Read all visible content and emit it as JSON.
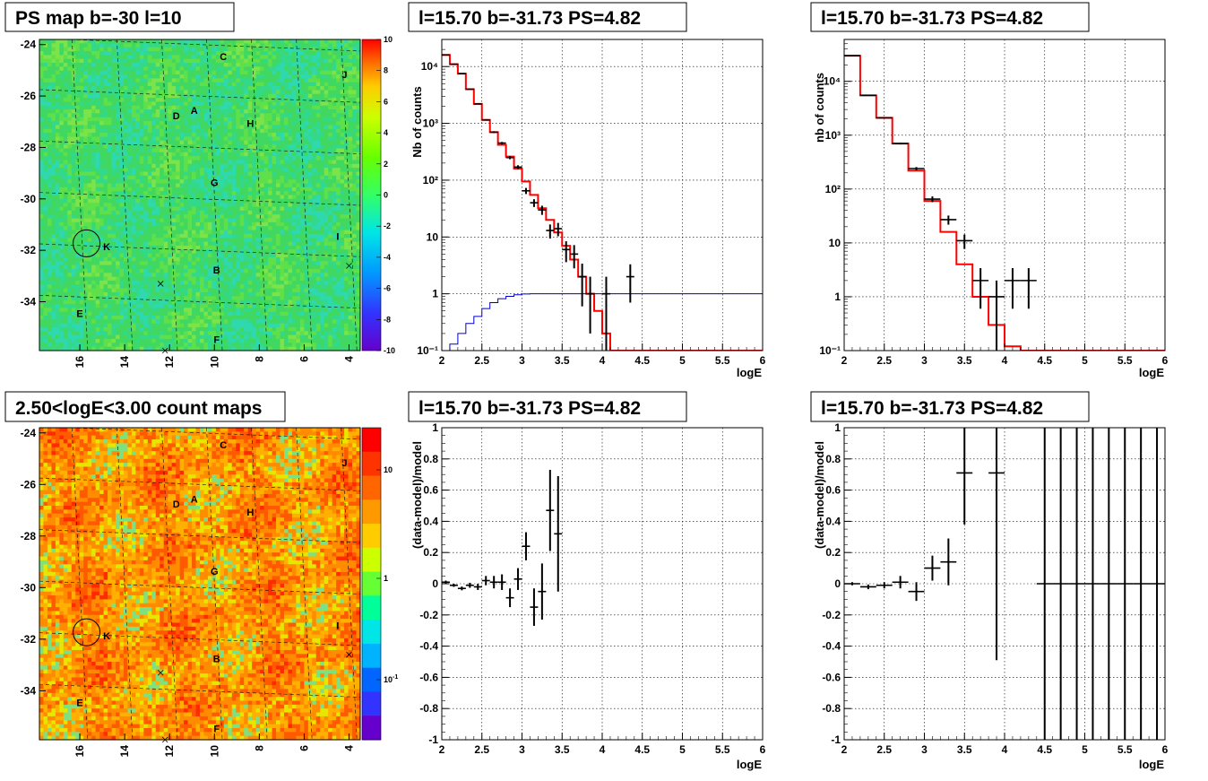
{
  "panels": {
    "map_top": {
      "title": "PS map b=-30 l=10",
      "y_ticks": [
        "-24",
        "-26",
        "-28",
        "-30",
        "-32",
        "-34"
      ],
      "x_ticks": [
        "16",
        "14",
        "12",
        "10",
        "8",
        "6",
        "4"
      ],
      "palette_ticks": [
        "10",
        "8",
        "6",
        "4",
        "2",
        "0",
        "-2",
        "-4",
        "-6",
        "-8",
        "-10"
      ],
      "base_color": "#40d860"
    },
    "map_bottom": {
      "title": "2.50<logE<3.00 count maps",
      "y_ticks": [
        "-24",
        "-26",
        "-28",
        "-30",
        "-32",
        "-34"
      ],
      "x_ticks": [
        "16",
        "14",
        "12",
        "10",
        "8",
        "6",
        "4"
      ],
      "palette_ticks": [
        "10",
        "1",
        "10"
      ],
      "palette_exp": "-1",
      "base_color": "#ff8c00"
    },
    "spec_left": {
      "title": "l=15.70 b=-31.73 PS=4.82",
      "ylabel": "Nb of counts",
      "xlabel": "logE"
    },
    "spec_right": {
      "title": "l=15.70 b=-31.73 PS=4.82",
      "ylabel": "nb of counts",
      "xlabel": "logE"
    },
    "res_left": {
      "title": "l=15.70 b=-31.73 PS=4.82",
      "ylabel": "(data-model)/model",
      "xlabel": "logE"
    },
    "res_right": {
      "title": "l=15.70 b=-31.73 PS=4.82",
      "ylabel": "(data-model)/model",
      "xlabel": "logE"
    }
  },
  "sources": [
    {
      "label": "C",
      "l": 9.6,
      "b": -24.6
    },
    {
      "label": "J",
      "l": 4.2,
      "b": -25.3
    },
    {
      "label": "D",
      "l": 11.7,
      "b": -26.9
    },
    {
      "label": "A",
      "l": 10.9,
      "b": -26.7
    },
    {
      "label": "H",
      "l": 8.4,
      "b": -27.2
    },
    {
      "label": "G",
      "l": 10.0,
      "b": -29.5
    },
    {
      "label": "I",
      "l": 4.5,
      "b": -31.6
    },
    {
      "label": "K",
      "l": 14.8,
      "b": -32.0
    },
    {
      "label": "B",
      "l": 9.9,
      "b": -32.9
    },
    {
      "label": "E",
      "l": 16.0,
      "b": -34.6
    },
    {
      "label": "F",
      "l": 9.9,
      "b": -35.6
    }
  ],
  "crosses": [
    {
      "l": 12.4,
      "b": -33.3
    },
    {
      "l": 4.0,
      "b": -32.6
    },
    {
      "l": 12.2,
      "b": -35.9
    }
  ],
  "ps_circle": {
    "l": 15.7,
    "b": -31.73
  },
  "colors": {
    "data": "#000000",
    "model": "#ff0000",
    "efficiency": "#0000cc"
  },
  "chart_data": [
    {
      "type": "line",
      "title": "l=15.70 b=-31.73 PS=4.82",
      "xlabel": "logE",
      "ylabel": "Nb of counts",
      "xlim": [
        2,
        6
      ],
      "ylim": [
        0.1,
        30000
      ],
      "y_scale": "log",
      "x_ticks": [
        2,
        2.5,
        3,
        3.5,
        4,
        4.5,
        5,
        5.5,
        6
      ],
      "y_ticks": [
        0.1,
        1,
        10,
        100,
        1000,
        10000
      ],
      "y_tick_labels": [
        "10⁻¹",
        "1",
        "10",
        "10²",
        "10³",
        "10⁴"
      ],
      "grid": true,
      "series": [
        {
          "kind": "histogram",
          "color": "#ff0000",
          "bin_edges": [
            2.0,
            2.1,
            2.2,
            2.3,
            2.4,
            2.5,
            2.6,
            2.7,
            2.8,
            2.9,
            3.0,
            3.1,
            3.2,
            3.3,
            3.4,
            3.5,
            3.6,
            3.7,
            3.8,
            3.9,
            4.0,
            4.1,
            4.2,
            6.0
          ],
          "values": [
            16000,
            11000,
            7500,
            4000,
            2200,
            1150,
            700,
            420,
            260,
            160,
            95,
            55,
            32,
            20,
            12,
            7,
            4,
            2,
            1,
            0.5,
            0.2,
            0.1,
            0.1
          ]
        },
        {
          "kind": "histogram",
          "color": "#0000cc",
          "bin_edges": [
            2.0,
            2.1,
            2.2,
            2.3,
            2.4,
            2.5,
            2.6,
            2.7,
            2.8,
            2.9,
            3.0,
            3.1,
            6.0
          ],
          "values": [
            0.1,
            0.13,
            0.2,
            0.3,
            0.4,
            0.55,
            0.7,
            0.82,
            0.9,
            0.96,
            0.99,
            1.0
          ]
        },
        {
          "kind": "errorbars",
          "color": "#000000",
          "x": [
            2.05,
            2.15,
            2.25,
            2.35,
            2.45,
            2.55,
            2.65,
            2.75,
            2.85,
            2.95,
            3.05,
            3.15,
            3.25,
            3.35,
            3.45,
            3.55,
            3.65,
            3.75,
            3.85,
            4.05,
            4.35
          ],
          "y": [
            16000,
            11000,
            7500,
            4000,
            2200,
            1150,
            700,
            450,
            250,
            170,
            65,
            40,
            30,
            13,
            14,
            6,
            5,
            2,
            1,
            1,
            2
          ],
          "yerr_low": [
            130,
            105,
            85,
            63,
            47,
            34,
            26,
            21,
            16,
            13,
            8,
            6.3,
            5.5,
            3.6,
            3.7,
            2.4,
            2.2,
            1.4,
            0.8,
            0.95,
            1.3
          ],
          "yerr_high": [
            130,
            105,
            85,
            63,
            47,
            34,
            26,
            21,
            16,
            13,
            8,
            6.3,
            5.5,
            3.6,
            3.7,
            2.4,
            2.2,
            1.4,
            1.0,
            1.0,
            1.3
          ],
          "xerr": 0.05
        }
      ]
    },
    {
      "type": "line",
      "title": "l=15.70 b=-31.73 PS=4.82",
      "xlabel": "logE",
      "ylabel": "nb of counts",
      "xlim": [
        2,
        6
      ],
      "ylim": [
        0.1,
        60000
      ],
      "y_scale": "log",
      "x_ticks": [
        2,
        2.5,
        3,
        3.5,
        4,
        4.5,
        5,
        5.5,
        6
      ],
      "y_ticks": [
        0.1,
        1,
        10,
        100,
        1000,
        10000
      ],
      "y_tick_labels": [
        "10⁻¹",
        "1",
        "10",
        "10²",
        "10³",
        "10⁴"
      ],
      "grid": true,
      "series": [
        {
          "kind": "histogram",
          "color": "#ff0000",
          "bin_edges": [
            2.0,
            2.2,
            2.4,
            2.6,
            2.8,
            3.0,
            3.2,
            3.4,
            3.6,
            3.8,
            4.0,
            4.2,
            6.0
          ],
          "values": [
            30000,
            5500,
            2100,
            700,
            220,
            60,
            16,
            4,
            1,
            0.3,
            0.12,
            0.1
          ]
        },
        {
          "kind": "errorbars",
          "color": "#000000",
          "x": [
            2.1,
            2.3,
            2.5,
            2.7,
            2.9,
            3.1,
            3.3,
            3.5,
            3.7,
            3.9,
            4.1,
            4.3
          ],
          "y": [
            30000,
            5500,
            2100,
            700,
            240,
            65,
            27,
            11,
            2,
            1,
            2,
            2
          ],
          "yerr_low": [
            180,
            75,
            46,
            26,
            16,
            8,
            5.2,
            3.3,
            1.4,
            0.9,
            1.4,
            1.4
          ],
          "yerr_high": [
            180,
            75,
            46,
            26,
            16,
            8,
            5.2,
            3.3,
            1.4,
            1.0,
            1.4,
            1.4
          ],
          "xerr": 0.1
        }
      ]
    },
    {
      "type": "scatter",
      "title": "l=15.70 b=-31.73 PS=4.82",
      "xlabel": "logE",
      "ylabel": "(data-model)/model",
      "xlim": [
        2,
        6
      ],
      "ylim": [
        -1,
        1
      ],
      "x_ticks": [
        2,
        2.5,
        3,
        3.5,
        4,
        4.5,
        5,
        5.5,
        6
      ],
      "y_ticks": [
        -1,
        -0.8,
        -0.6,
        -0.4,
        -0.2,
        0,
        0.2,
        0.4,
        0.6,
        0.8,
        1
      ],
      "grid": true,
      "series": [
        {
          "kind": "errorbars",
          "color": "#000000",
          "x": [
            2.05,
            2.15,
            2.25,
            2.35,
            2.45,
            2.55,
            2.65,
            2.75,
            2.85,
            2.95,
            3.05,
            3.15,
            3.25,
            3.35,
            3.45
          ],
          "y": [
            0.01,
            -0.01,
            -0.03,
            -0.01,
            -0.02,
            0.02,
            0.01,
            0.01,
            -0.09,
            0.03,
            0.24,
            -0.15,
            -0.05,
            0.47,
            0.32
          ],
          "yerr": [
            0.01,
            0.01,
            0.012,
            0.016,
            0.02,
            0.03,
            0.04,
            0.05,
            0.06,
            0.07,
            0.09,
            0.12,
            0.18,
            0.26,
            0.37
          ],
          "xerr": 0.05
        }
      ]
    },
    {
      "type": "scatter",
      "title": "l=15.70 b=-31.73 PS=4.82",
      "xlabel": "logE",
      "ylabel": "(data-model)/model",
      "xlim": [
        2,
        6
      ],
      "ylim": [
        -1,
        1
      ],
      "x_ticks": [
        2,
        2.5,
        3,
        3.5,
        4,
        4.5,
        5,
        5.5,
        6
      ],
      "y_ticks": [
        -1,
        -0.8,
        -0.6,
        -0.4,
        -0.2,
        0,
        0.2,
        0.4,
        0.6,
        0.8,
        1
      ],
      "grid": true,
      "series": [
        {
          "kind": "errorbars",
          "color": "#000000",
          "x": [
            2.1,
            2.3,
            2.5,
            2.7,
            2.9,
            3.1,
            3.3,
            3.5,
            3.9,
            4.5,
            4.7,
            4.9,
            5.1,
            5.3,
            5.5,
            5.7,
            5.9
          ],
          "y": [
            0.0,
            -0.02,
            -0.01,
            0.01,
            -0.05,
            0.1,
            0.14,
            0.71,
            0.71,
            0,
            0,
            0,
            0,
            0,
            0,
            0,
            0
          ],
          "yerr": [
            0.01,
            0.015,
            0.02,
            0.04,
            0.06,
            0.08,
            0.15,
            0.33,
            1.2,
            10,
            10,
            10,
            10,
            10,
            10,
            10,
            10
          ],
          "xerr": 0.1
        }
      ]
    }
  ]
}
